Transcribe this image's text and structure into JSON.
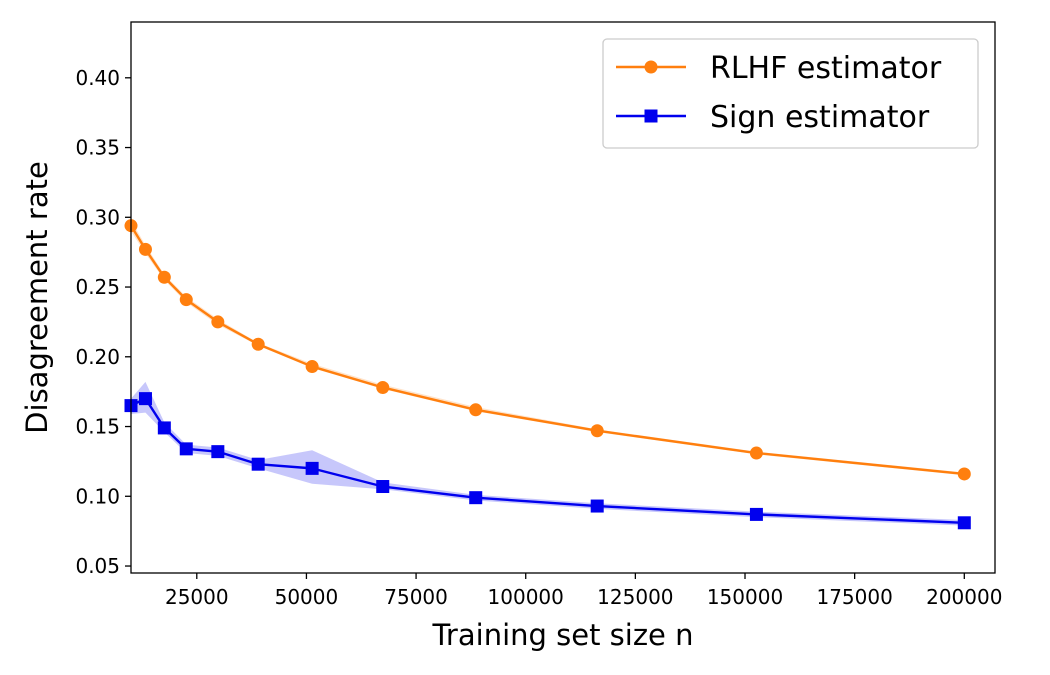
{
  "chart_data": {
    "type": "line",
    "title": "",
    "xlabel": "Training set size n",
    "ylabel": "Disagreement rate",
    "xlim": [
      10000,
      207000
    ],
    "ylim": [
      0.045,
      0.44
    ],
    "xticks": [
      25000,
      50000,
      75000,
      100000,
      125000,
      150000,
      175000,
      200000
    ],
    "xtick_labels": [
      "25000",
      "50000",
      "75000",
      "100000",
      "125000",
      "150000",
      "175000",
      "200000"
    ],
    "yticks": [
      0.05,
      0.1,
      0.15,
      0.2,
      0.25,
      0.3,
      0.35,
      0.4
    ],
    "ytick_labels": [
      "0.05",
      "0.10",
      "0.15",
      "0.20",
      "0.25",
      "0.30",
      "0.35",
      "0.40"
    ],
    "grid": false,
    "legend_position": "top-right",
    "series": [
      {
        "name": "RLHF estimator",
        "color": "#ff7f0e",
        "marker": "circle",
        "x": [
          10000,
          13300,
          17600,
          22600,
          29800,
          39000,
          51300,
          67400,
          88600,
          116300,
          152600,
          200000
        ],
        "y": [
          0.294,
          0.277,
          0.257,
          0.241,
          0.225,
          0.209,
          0.193,
          0.178,
          0.162,
          0.147,
          0.131,
          0.116
        ],
        "band_lower": [
          0.29,
          0.274,
          0.255,
          0.239,
          0.223,
          0.208,
          0.192,
          0.177,
          0.161,
          0.146,
          0.13,
          0.115
        ],
        "band_upper": [
          0.298,
          0.28,
          0.259,
          0.243,
          0.227,
          0.21,
          0.195,
          0.18,
          0.164,
          0.148,
          0.132,
          0.117
        ]
      },
      {
        "name": "Sign estimator",
        "color": "#0000ee",
        "marker": "square",
        "x": [
          10000,
          13300,
          17600,
          22600,
          29800,
          39000,
          51300,
          67400,
          88600,
          116300,
          152600,
          200000
        ],
        "y": [
          0.165,
          0.17,
          0.149,
          0.134,
          0.132,
          0.123,
          0.12,
          0.107,
          0.099,
          0.093,
          0.087,
          0.081
        ],
        "band_lower": [
          0.159,
          0.16,
          0.146,
          0.131,
          0.129,
          0.12,
          0.109,
          0.105,
          0.097,
          0.091,
          0.085,
          0.079
        ],
        "band_upper": [
          0.17,
          0.182,
          0.153,
          0.137,
          0.135,
          0.126,
          0.133,
          0.11,
          0.101,
          0.095,
          0.089,
          0.083
        ]
      }
    ]
  }
}
